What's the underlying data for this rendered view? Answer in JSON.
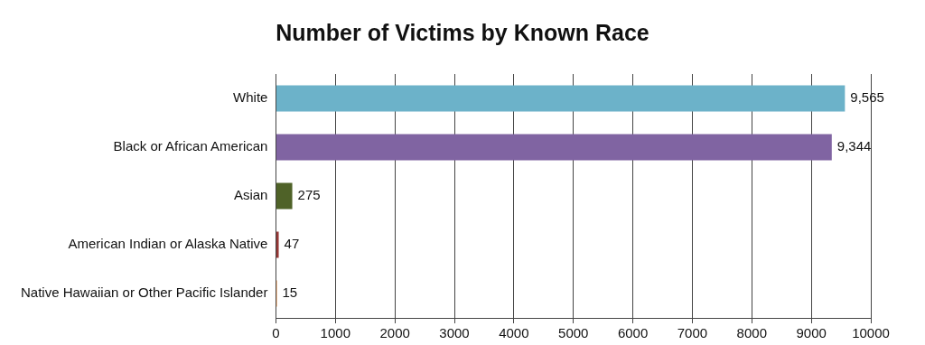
{
  "chart_data": {
    "type": "bar",
    "orientation": "horizontal",
    "title": "Number of Victims by Known Race",
    "categories": [
      "White",
      "Black or African American",
      "Asian",
      "American Indian or Alaska Native",
      "Native Hawaiian or Other Pacific Islander"
    ],
    "values": [
      9565,
      9344,
      275,
      47,
      15
    ],
    "colors": [
      "#6cb2c9",
      "#8064a2",
      "#4f6228",
      "#953735",
      "#e46c0a"
    ],
    "value_labels": [
      "9,565",
      "9,344",
      "275",
      "47",
      "15"
    ],
    "xlim": [
      0,
      10000
    ],
    "xticks": [
      0,
      1000,
      2000,
      3000,
      4000,
      5000,
      6000,
      7000,
      8000,
      9000,
      10000
    ],
    "grid": "x",
    "legend": false
  }
}
